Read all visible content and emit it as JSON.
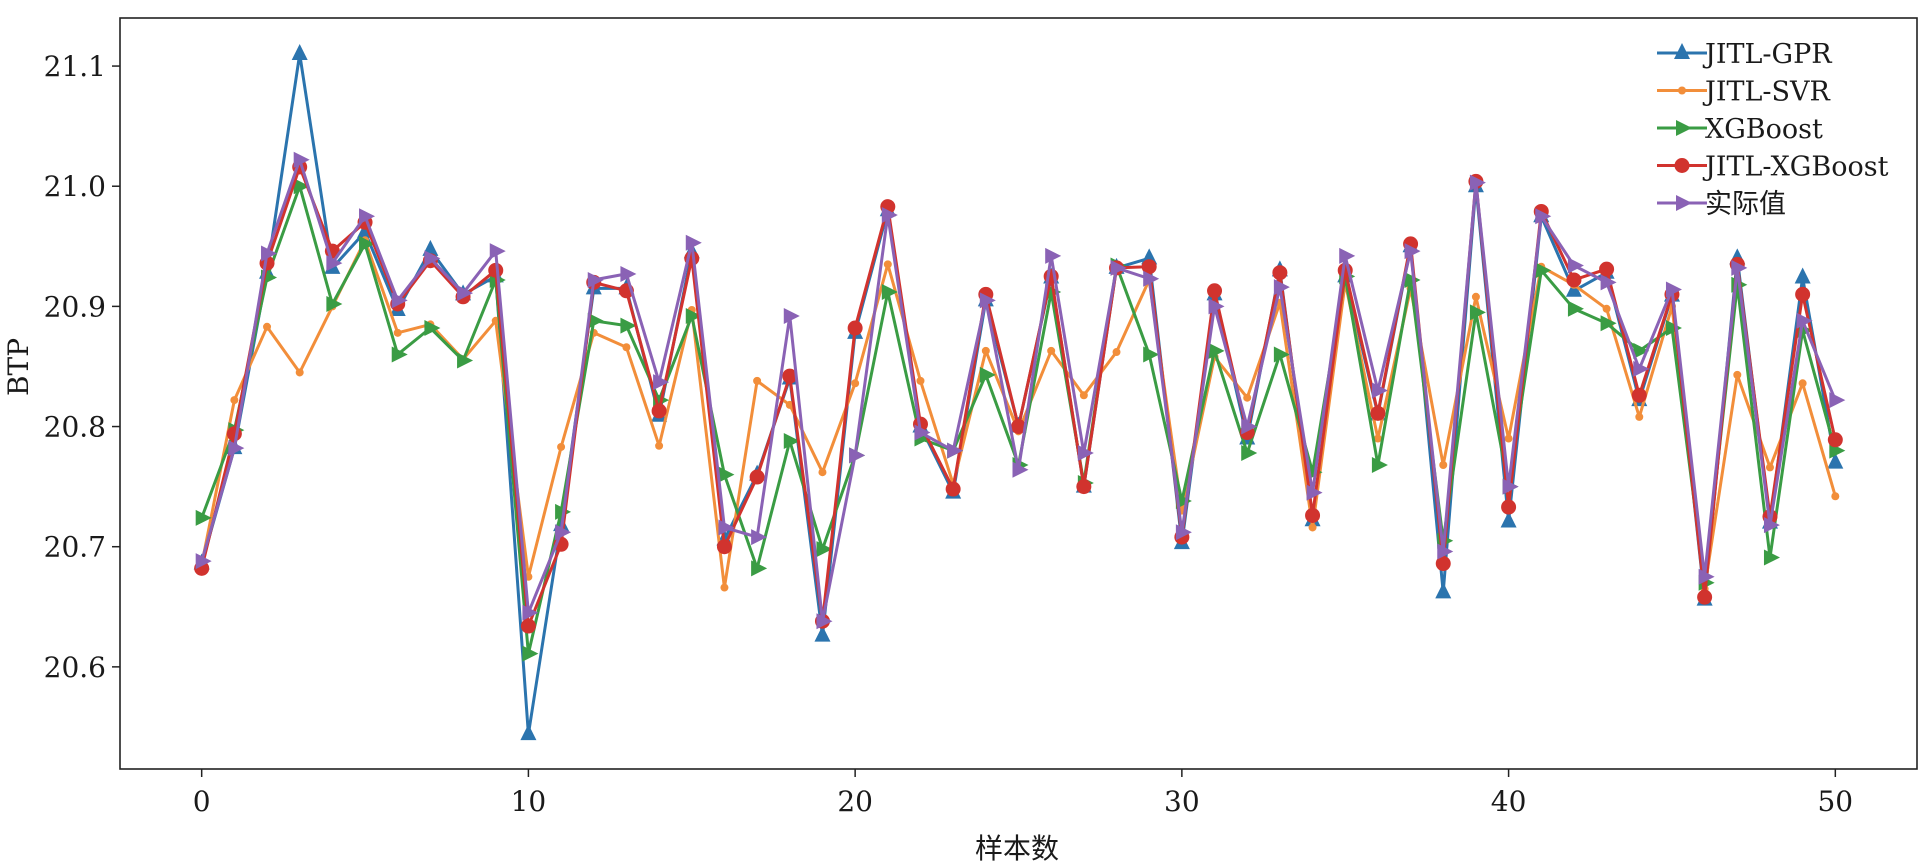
{
  "chart_data": {
    "type": "line",
    "xlabel": "样本数",
    "ylabel": "BTP",
    "xlim": [
      -2.5,
      52.5
    ],
    "ylim": [
      20.515,
      21.14
    ],
    "xticks": [
      0,
      10,
      20,
      30,
      40,
      50
    ],
    "yticks": [
      20.6,
      20.7,
      20.8,
      20.9,
      21.0,
      21.1
    ],
    "ytick_labels": [
      "20.6",
      "20.7",
      "20.8",
      "20.9",
      "21.0",
      "21.1"
    ],
    "grid": false,
    "legend_position": "top-right",
    "x": [
      0,
      1,
      2,
      3,
      4,
      5,
      6,
      7,
      8,
      9,
      10,
      11,
      12,
      13,
      14,
      15,
      16,
      17,
      18,
      19,
      20,
      21,
      22,
      23,
      24,
      25,
      26,
      27,
      28,
      29,
      30,
      31,
      32,
      33,
      34,
      35,
      36,
      37,
      38,
      39,
      40,
      41,
      42,
      43,
      44,
      45,
      46,
      47,
      48,
      49,
      50
    ],
    "series": [
      {
        "name": "JITL-GPR",
        "color": "#2b74ae",
        "marker": "triangle-up",
        "values": [
          20.686,
          20.782,
          20.928,
          21.11,
          20.932,
          20.962,
          20.897,
          20.947,
          20.91,
          20.925,
          20.544,
          20.718,
          20.915,
          20.915,
          20.809,
          20.945,
          20.706,
          20.76,
          20.84,
          20.626,
          20.878,
          20.98,
          20.8,
          20.745,
          20.905,
          20.8,
          20.924,
          20.75,
          20.932,
          20.94,
          20.703,
          20.91,
          20.79,
          20.93,
          20.722,
          20.925,
          20.81,
          20.95,
          20.662,
          21.0,
          20.721,
          20.975,
          20.913,
          20.928,
          20.822,
          20.909,
          20.656,
          20.94,
          20.72,
          20.924,
          20.77
        ]
      },
      {
        "name": "JITL-SVR",
        "color": "#f28e3a",
        "marker": "circle-small",
        "values": [
          20.685,
          20.822,
          20.883,
          20.845,
          20.9,
          20.955,
          20.878,
          20.885,
          20.856,
          20.888,
          20.675,
          20.783,
          20.878,
          20.866,
          20.784,
          20.897,
          20.666,
          20.838,
          20.818,
          20.762,
          20.836,
          20.935,
          20.838,
          20.752,
          20.863,
          20.796,
          20.863,
          20.826,
          20.862,
          20.922,
          20.73,
          20.858,
          20.824,
          20.903,
          20.716,
          20.92,
          20.79,
          20.915,
          20.768,
          20.908,
          20.79,
          20.933,
          20.918,
          20.898,
          20.808,
          20.9,
          20.665,
          20.843,
          20.766,
          20.836,
          20.742
        ]
      },
      {
        "name": "XGBoost",
        "color": "#3a9c44",
        "marker": "triangle-right",
        "values": [
          20.724,
          20.797,
          20.924,
          21.0,
          20.902,
          20.952,
          20.86,
          20.882,
          20.855,
          20.922,
          20.611,
          20.729,
          20.888,
          20.884,
          20.822,
          20.892,
          20.76,
          20.682,
          20.788,
          20.698,
          20.776,
          20.912,
          20.79,
          20.78,
          20.843,
          20.768,
          20.912,
          20.753,
          20.934,
          20.86,
          20.738,
          20.863,
          20.778,
          20.86,
          20.762,
          20.925,
          20.768,
          20.922,
          20.705,
          20.895,
          20.75,
          20.93,
          20.898,
          20.886,
          20.863,
          20.882,
          20.67,
          20.918,
          20.691,
          20.88,
          20.78
        ]
      },
      {
        "name": "JITL-XGBoost",
        "color": "#d1332e",
        "marker": "circle",
        "values": [
          20.682,
          20.794,
          20.936,
          21.016,
          20.946,
          20.97,
          20.902,
          20.938,
          20.908,
          20.93,
          20.634,
          20.702,
          20.92,
          20.913,
          20.813,
          20.94,
          20.7,
          20.758,
          20.842,
          20.638,
          20.882,
          20.983,
          20.802,
          20.748,
          20.91,
          20.8,
          20.925,
          20.75,
          20.932,
          20.933,
          20.708,
          20.913,
          20.795,
          20.928,
          20.726,
          20.93,
          20.811,
          20.952,
          20.686,
          21.004,
          20.733,
          20.979,
          20.922,
          20.931,
          20.826,
          20.91,
          20.658,
          20.935,
          20.725,
          20.91,
          20.789
        ]
      },
      {
        "name": "实际值",
        "color": "#8a62b5",
        "marker": "triangle-right",
        "values": [
          20.688,
          20.782,
          20.944,
          21.022,
          20.936,
          20.975,
          20.905,
          20.94,
          20.911,
          20.946,
          20.645,
          20.712,
          20.922,
          20.927,
          20.837,
          20.953,
          20.716,
          20.708,
          20.892,
          20.638,
          20.776,
          20.976,
          20.795,
          20.78,
          20.905,
          20.764,
          20.942,
          20.778,
          20.932,
          20.923,
          20.712,
          20.9,
          20.8,
          20.916,
          20.745,
          20.942,
          20.83,
          20.946,
          20.696,
          21.003,
          20.75,
          20.975,
          20.934,
          20.92,
          20.848,
          20.914,
          20.675,
          20.932,
          20.718,
          20.888,
          20.822
        ]
      }
    ]
  }
}
